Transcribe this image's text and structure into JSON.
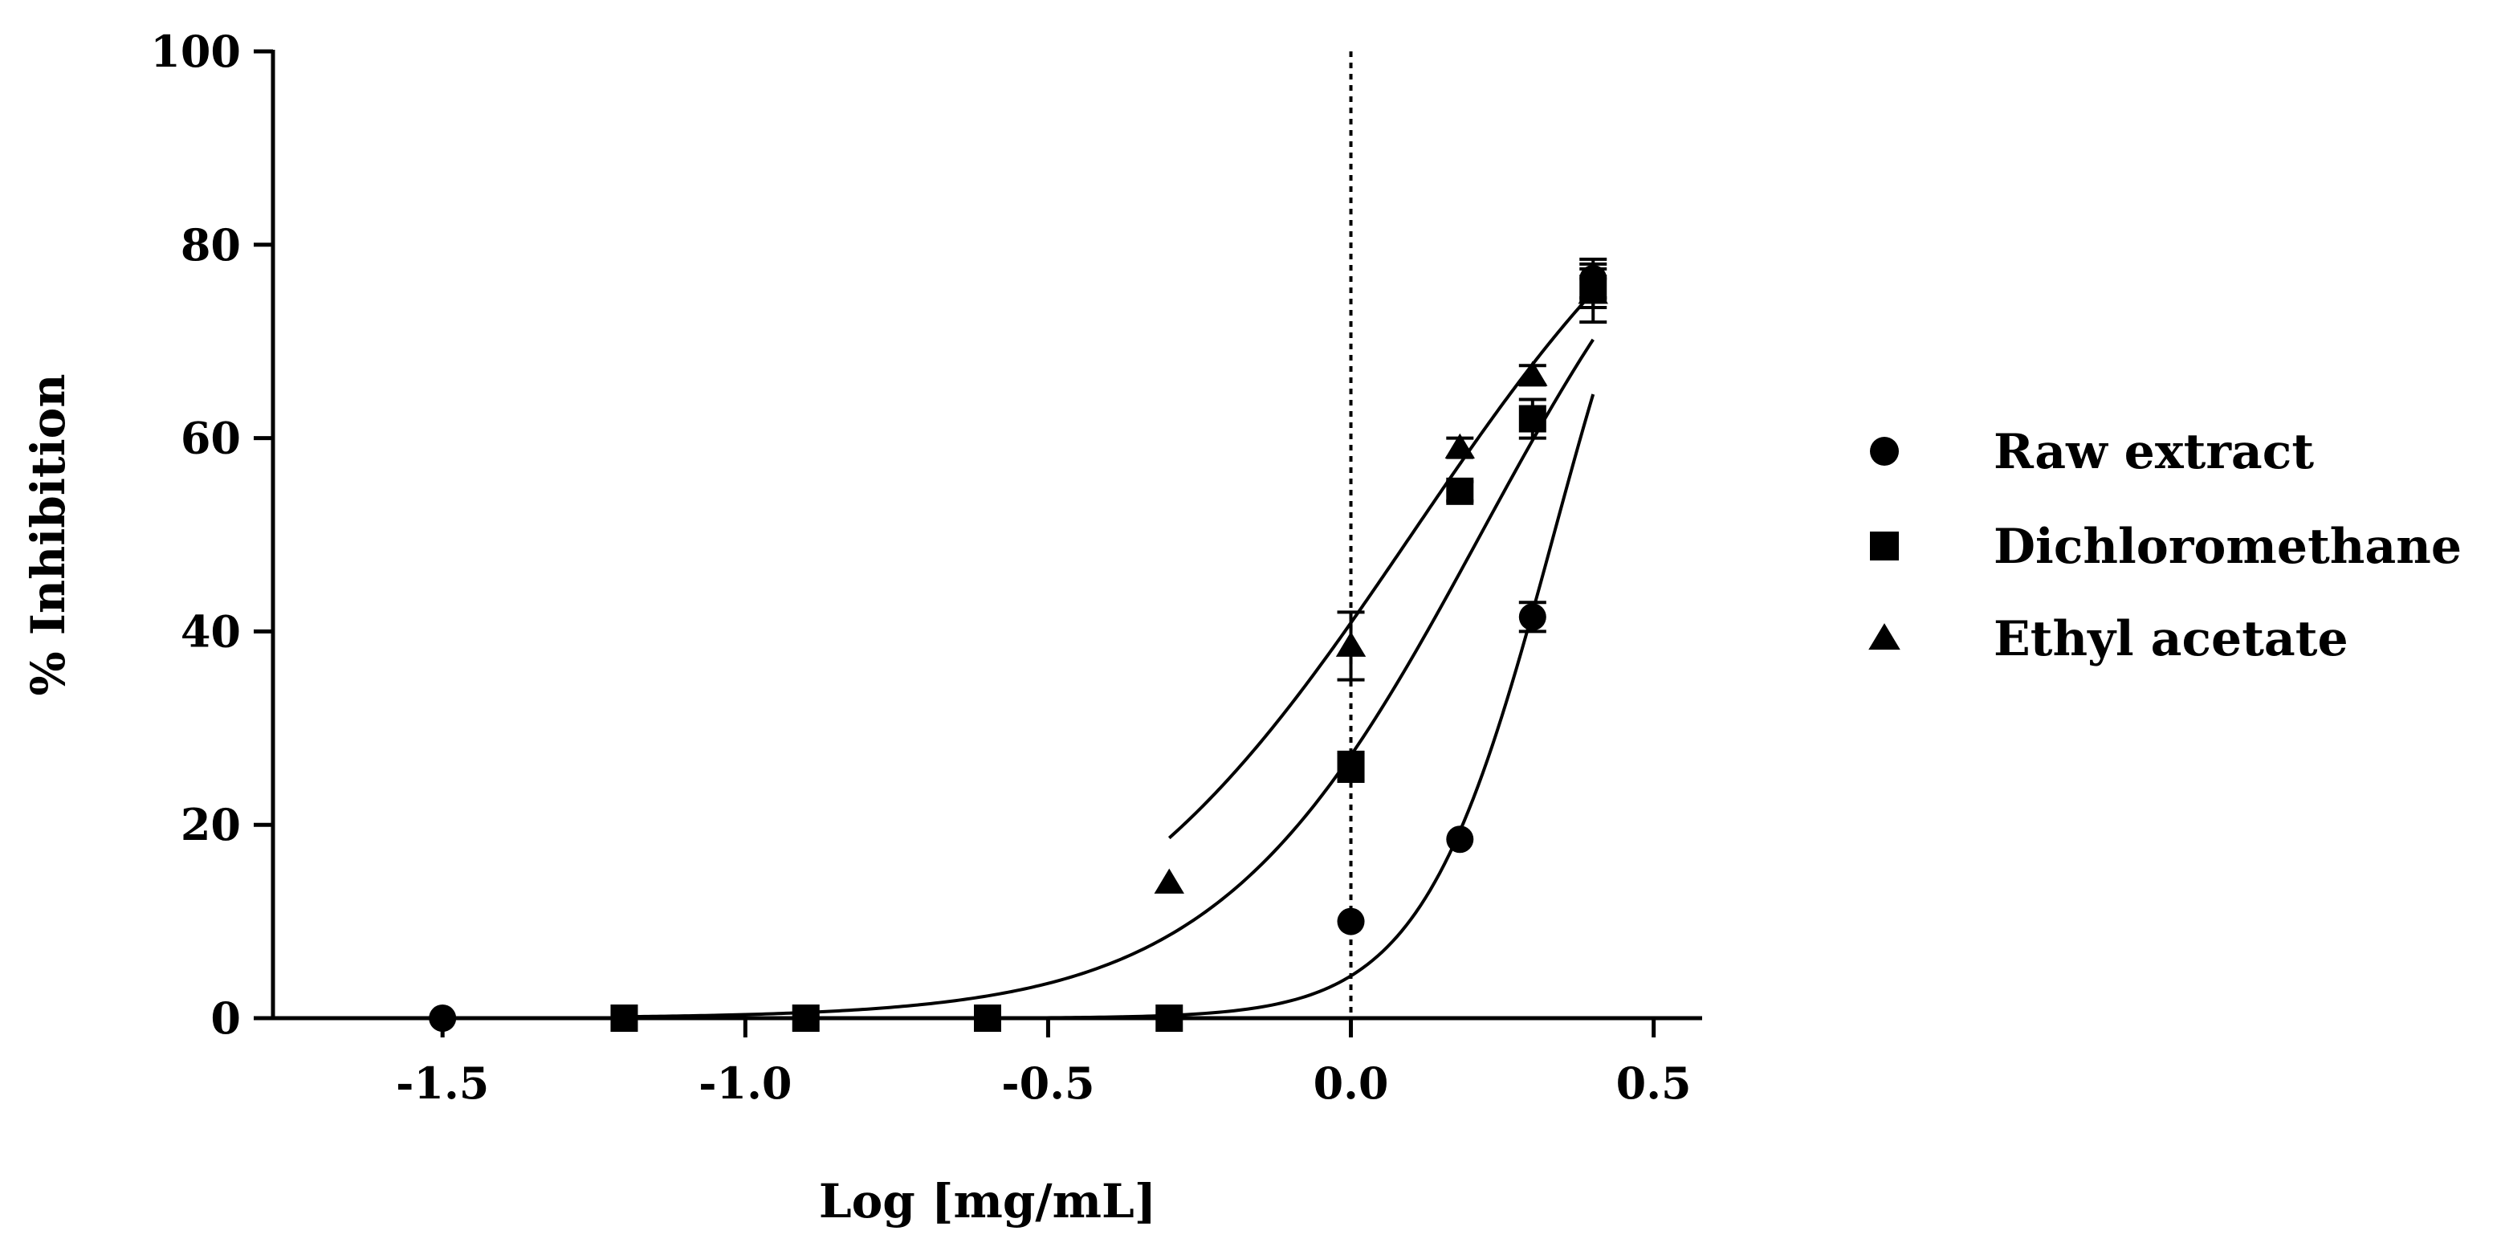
{
  "chart_data": {
    "type": "scatter",
    "title": "",
    "xlabel": "Log [mg/mL]",
    "ylabel": "% Inhibition",
    "xlim": [
      -1.78,
      0.58
    ],
    "ylim": [
      0,
      100
    ],
    "xticks": [
      -1.5,
      -1.0,
      -0.5,
      0.0,
      0.5
    ],
    "xtick_labels": [
      "-1.5",
      "-1.0",
      "-0.5",
      "0.0",
      "0.5"
    ],
    "yticks": [
      0,
      20,
      40,
      60,
      80,
      100
    ],
    "ytick_labels": [
      "0",
      "20",
      "40",
      "60",
      "80",
      "100"
    ],
    "reference_line": {
      "x": 0.0,
      "style": "dotted"
    },
    "legend_position": "right",
    "series": [
      {
        "name": "Raw extract",
        "marker": "circle",
        "x": [
          -1.5,
          0.0,
          0.18,
          0.3,
          0.4
        ],
        "y": [
          0,
          10,
          18.5,
          41.5,
          76.5
        ],
        "err": [
          0,
          0,
          0.5,
          1.5,
          2.0
        ],
        "fit": {
          "bottom": 0,
          "top": 100,
          "log_ec50": 0.335,
          "hill": 4.0
        }
      },
      {
        "name": "Dichloromethane",
        "marker": "square",
        "x": [
          -1.2,
          -0.9,
          -0.6,
          -0.3,
          0.0,
          0.18,
          0.3,
          0.4
        ],
        "y": [
          0,
          0,
          0,
          0,
          26,
          54.5,
          62,
          75.5
        ],
        "err": [
          0,
          0,
          0,
          0,
          1.5,
          1.0,
          2.0,
          2.0
        ],
        "fit": {
          "bottom": 0,
          "top": 100,
          "log_ec50": 0.214,
          "hill": 2.0
        }
      },
      {
        "name": "Ethyl acetate",
        "marker": "triangle",
        "x": [
          -0.3,
          0.0,
          0.18,
          0.3,
          0.4
        ],
        "y": [
          14,
          38.5,
          59,
          66.5,
          75
        ],
        "err": [
          0,
          3.5,
          1.0,
          1.0,
          3.0
        ],
        "fit": {
          "bottom": 0,
          "top": 100,
          "log_ec50": 0.1,
          "hill": 1.6
        }
      }
    ]
  }
}
